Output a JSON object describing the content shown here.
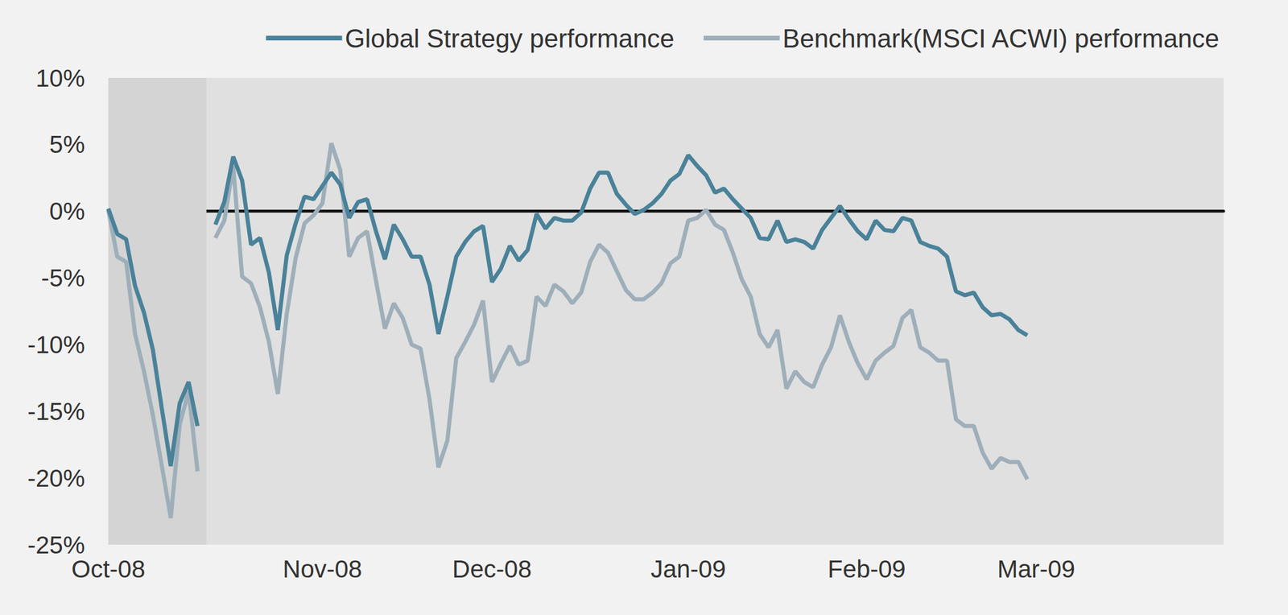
{
  "chart_data": {
    "type": "line",
    "categories": [
      "Oct-08",
      null,
      null,
      null,
      null,
      null,
      null,
      null,
      null,
      null,
      null,
      null,
      null,
      null,
      null,
      null,
      null,
      null,
      null,
      null,
      null,
      null,
      null,
      null,
      "Nov-08",
      null,
      null,
      null,
      null,
      null,
      null,
      null,
      null,
      null,
      null,
      null,
      null,
      null,
      null,
      null,
      null,
      null,
      null,
      "Dec-08",
      null,
      null,
      null,
      null,
      null,
      null,
      null,
      null,
      null,
      null,
      null,
      null,
      null,
      null,
      null,
      null,
      null,
      null,
      null,
      null,
      null,
      "Jan-09",
      null,
      null,
      null,
      null,
      null,
      null,
      null,
      null,
      null,
      null,
      null,
      null,
      null,
      null,
      null,
      null,
      null,
      null,
      null,
      "Feb-09",
      null,
      null,
      null,
      null,
      null,
      null,
      null,
      null,
      null,
      null,
      null,
      null,
      null,
      null,
      null,
      null,
      null,
      null,
      "Mar-09",
      null,
      null,
      null,
      null,
      null,
      null,
      null,
      null,
      null,
      null,
      null,
      null,
      null,
      null,
      null,
      null,
      null,
      null,
      null,
      null,
      null
    ],
    "series": [
      {
        "name": "Global Strategy performance",
        "color": "#4a8299",
        "values": [
          0.2,
          -1.7,
          -2.1,
          -5.6,
          -7.6,
          -10.4,
          -14.8,
          -19.1,
          -14.4,
          -12.8,
          -16.1,
          null,
          -1,
          0.7,
          4.1,
          2.3,
          -2.5,
          -2,
          -4.6,
          -8.9,
          -3.3,
          -0.9,
          1.1,
          0.9,
          1.9,
          2.9,
          2,
          -0.5,
          0.7,
          0.9,
          -1.5,
          -3.6,
          -1,
          -2.1,
          -3.4,
          -3.4,
          -5.5,
          -9.2,
          -6.4,
          -3.4,
          -2.3,
          -1.5,
          -1.1,
          -5.3,
          -4.3,
          -2.6,
          -3.7,
          -2.9,
          -0.2,
          -1.3,
          -0.5,
          -0.7,
          -0.7,
          -0.1,
          1.7,
          2.9,
          2.9,
          1.3,
          0.5,
          -0.2,
          0.1,
          0.6,
          1.3,
          2.3,
          2.8,
          4.2,
          3.4,
          2.7,
          1.4,
          1.7,
          0.9,
          0.2,
          -0.5,
          -2,
          -2.1,
          -0.7,
          -2.3,
          -2.1,
          -2.3,
          -2.8,
          -1.4,
          -0.5,
          0.4,
          -0.6,
          -1.5,
          -2.1,
          -0.7,
          -1.4,
          -1.5,
          -0.5,
          -0.7,
          -2.3,
          -2.6,
          -2.8,
          -3.4,
          -6,
          -6.3,
          -6.1,
          -7.2,
          -7.8,
          -7.7,
          -8.1,
          -8.9,
          -9.3,
          null,
          null,
          null,
          null,
          null,
          null,
          null,
          null,
          null,
          null,
          null,
          null,
          null,
          null,
          null,
          null,
          null,
          null,
          null,
          null,
          null,
          null
        ]
      },
      {
        "name": "Benchmark(MSCI ACWI) performance",
        "color": "#9eafba",
        "values": [
          0.1,
          -3.4,
          -3.8,
          -9.2,
          -12,
          -15.3,
          -19.1,
          -23,
          -16,
          -13.5,
          -19.5,
          null,
          -2,
          -0.7,
          3.4,
          -4.9,
          -5.4,
          -7.2,
          -9.8,
          -13.7,
          -7.7,
          -3.5,
          -0.9,
          -0.3,
          0.6,
          5.1,
          3.1,
          -3.4,
          -2,
          -1.5,
          -5.2,
          -8.8,
          -6.9,
          -8,
          -10,
          -10.3,
          -14.1,
          -19.2,
          -17.2,
          -11,
          -9.8,
          -8.5,
          -6.7,
          -12.8,
          -11.4,
          -10.1,
          -11.5,
          -11.2,
          -6.4,
          -7.1,
          -5.5,
          -6,
          -6.9,
          -6.1,
          -3.8,
          -2.5,
          -3.1,
          -4.5,
          -5.9,
          -6.6,
          -6.6,
          -6.1,
          -5.4,
          -3.9,
          -3.4,
          -0.7,
          -0.5,
          0.1,
          -1,
          -1.4,
          -3.1,
          -5.1,
          -6.4,
          -9.2,
          -10.2,
          -8.9,
          -13.3,
          -12,
          -12.8,
          -13.2,
          -11.5,
          -10.2,
          -7.8,
          -9.8,
          -11.4,
          -12.6,
          -11.2,
          -10.6,
          -10.1,
          -8,
          -7.4,
          -10.2,
          -10.6,
          -11.2,
          -11.2,
          -15.6,
          -16.1,
          -16.1,
          -18.1,
          -19.3,
          -18.5,
          -18.8,
          -18.8,
          -20.1,
          null,
          null,
          null,
          null,
          null,
          null,
          null,
          null,
          null,
          null,
          null,
          null,
          null,
          null,
          null,
          null,
          null,
          null,
          null,
          null,
          null,
          null
        ]
      }
    ],
    "ylim": [
      -25,
      10
    ],
    "yticks": [
      {
        "value": -25,
        "label": "-25%"
      },
      {
        "value": -20,
        "label": "-20%"
      },
      {
        "value": -15,
        "label": "-15%"
      },
      {
        "value": -10,
        "label": "-10%"
      },
      {
        "value": -5,
        "label": "-5%"
      },
      {
        "value": 0,
        "label": "0%"
      },
      {
        "value": 5,
        "label": "5%"
      },
      {
        "value": 10,
        "label": "10%"
      }
    ],
    "grid": false,
    "legend": "top"
  }
}
